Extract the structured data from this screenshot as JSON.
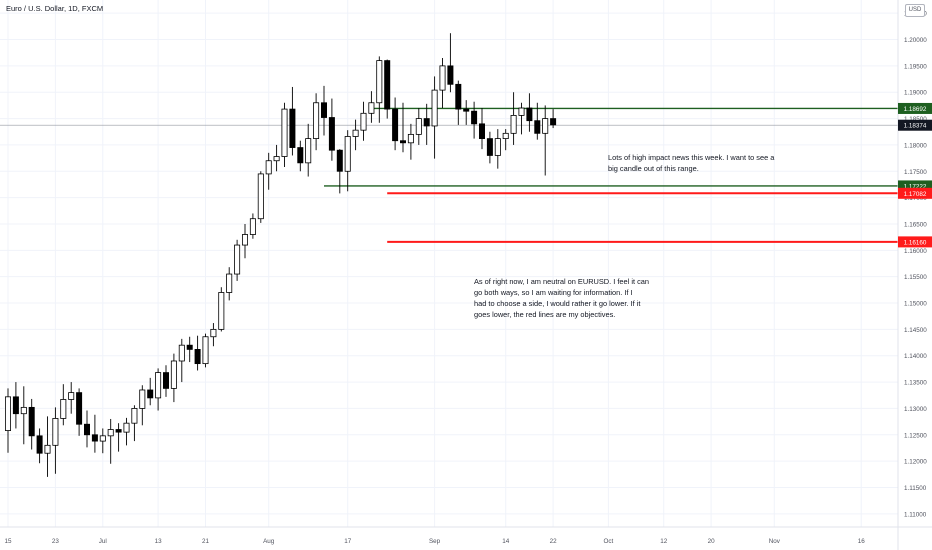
{
  "header": {
    "title": "Euro / U.S. Dollar, 1D, FXCM",
    "currency": "USD"
  },
  "colors": {
    "up_fill": "#ffffff",
    "down_fill": "#000000",
    "candle_stroke": "#000000",
    "support_line": "#1e5f20",
    "target_line": "#ff1a1a",
    "grid": "#f0f3fa",
    "axis_text": "#50535e",
    "last_price_bg": "#131722"
  },
  "chart_data": {
    "type": "candlestick",
    "symbol": "EURUSD",
    "timeframe": "1D",
    "source": "FXCM",
    "ylim": [
      1.1075,
      1.2075
    ],
    "y_ticks": [
      "1.11000",
      "1.11500",
      "1.12000",
      "1.12500",
      "1.13000",
      "1.13500",
      "1.14000",
      "1.14500",
      "1.15000",
      "1.15500",
      "1.16000",
      "1.16500",
      "1.17000",
      "1.17500",
      "1.18000",
      "1.18500",
      "1.19000",
      "1.19500",
      "1.20000",
      "1.20500"
    ],
    "x_ticks": [
      {
        "label": "15",
        "bar": 0
      },
      {
        "label": "23",
        "bar": 6
      },
      {
        "label": "Jul",
        "bar": 12
      },
      {
        "label": "13",
        "bar": 19
      },
      {
        "label": "21",
        "bar": 25
      },
      {
        "label": "Aug",
        "bar": 33
      },
      {
        "label": "17",
        "bar": 43
      },
      {
        "label": "Sep",
        "bar": 54
      },
      {
        "label": "14",
        "bar": 63
      },
      {
        "label": "22",
        "bar": 69
      },
      {
        "label": "Oct",
        "bar": 76
      },
      {
        "label": "12",
        "bar": 83
      },
      {
        "label": "20",
        "bar": 89
      },
      {
        "label": "Nov",
        "bar": 97
      },
      {
        "label": "16",
        "bar": 108
      }
    ],
    "candles": [
      [
        1.1258,
        1.1338,
        1.1216,
        1.1322
      ],
      [
        1.1322,
        1.135,
        1.1262,
        1.129
      ],
      [
        1.129,
        1.1342,
        1.1232,
        1.1302
      ],
      [
        1.1302,
        1.1318,
        1.1222,
        1.1248
      ],
      [
        1.1248,
        1.1262,
        1.1196,
        1.1215
      ],
      [
        1.1215,
        1.1285,
        1.117,
        1.123
      ],
      [
        1.123,
        1.1302,
        1.1176,
        1.1281
      ],
      [
        1.1281,
        1.1346,
        1.1268,
        1.1317
      ],
      [
        1.1317,
        1.135,
        1.129,
        1.133
      ],
      [
        1.133,
        1.1338,
        1.1248,
        1.127
      ],
      [
        1.127,
        1.1296,
        1.1226,
        1.125
      ],
      [
        1.125,
        1.1288,
        1.1216,
        1.1238
      ],
      [
        1.1238,
        1.1262,
        1.1215,
        1.1248
      ],
      [
        1.1248,
        1.128,
        1.1195,
        1.126
      ],
      [
        1.126,
        1.1272,
        1.1218,
        1.1255
      ],
      [
        1.1255,
        1.1282,
        1.123,
        1.1272
      ],
      [
        1.1272,
        1.1306,
        1.1238,
        1.13
      ],
      [
        1.13,
        1.1344,
        1.1268,
        1.1335
      ],
      [
        1.1335,
        1.1358,
        1.1306,
        1.132
      ],
      [
        1.132,
        1.1376,
        1.1296,
        1.1368
      ],
      [
        1.1368,
        1.1382,
        1.1322,
        1.1338
      ],
      [
        1.1338,
        1.1404,
        1.1312,
        1.139
      ],
      [
        1.139,
        1.1432,
        1.135,
        1.142
      ],
      [
        1.142,
        1.1436,
        1.1388,
        1.1412
      ],
      [
        1.1412,
        1.1438,
        1.1372,
        1.1385
      ],
      [
        1.1385,
        1.1442,
        1.1378,
        1.1436
      ],
      [
        1.1436,
        1.1462,
        1.1418,
        1.145
      ],
      [
        1.145,
        1.153,
        1.1446,
        1.152
      ],
      [
        1.152,
        1.1568,
        1.1505,
        1.1555
      ],
      [
        1.1555,
        1.162,
        1.1542,
        1.161
      ],
      [
        1.161,
        1.165,
        1.1585,
        1.163
      ],
      [
        1.163,
        1.167,
        1.1622,
        1.166
      ],
      [
        1.166,
        1.175,
        1.1652,
        1.1745
      ],
      [
        1.1745,
        1.1785,
        1.1715,
        1.177
      ],
      [
        1.177,
        1.18,
        1.175,
        1.1778
      ],
      [
        1.1778,
        1.188,
        1.1758,
        1.1868
      ],
      [
        1.1868,
        1.191,
        1.178,
        1.1795
      ],
      [
        1.1795,
        1.1808,
        1.175,
        1.1766
      ],
      [
        1.1766,
        1.184,
        1.174,
        1.1812
      ],
      [
        1.1812,
        1.1898,
        1.179,
        1.188
      ],
      [
        1.188,
        1.1912,
        1.1818,
        1.1852
      ],
      [
        1.1852,
        1.1888,
        1.177,
        1.179
      ],
      [
        1.179,
        1.1792,
        1.1708,
        1.175
      ],
      [
        1.175,
        1.1828,
        1.1712,
        1.1816
      ],
      [
        1.1816,
        1.1848,
        1.179,
        1.1828
      ],
      [
        1.1828,
        1.1882,
        1.1808,
        1.186
      ],
      [
        1.186,
        1.1902,
        1.1842,
        1.188
      ],
      [
        1.188,
        1.1968,
        1.1842,
        1.196
      ],
      [
        1.196,
        1.1962,
        1.185,
        1.1868
      ],
      [
        1.1868,
        1.189,
        1.179,
        1.1808
      ],
      [
        1.1808,
        1.188,
        1.1786,
        1.1804
      ],
      [
        1.1804,
        1.184,
        1.1772,
        1.182
      ],
      [
        1.182,
        1.187,
        1.18,
        1.185
      ],
      [
        1.185,
        1.1878,
        1.18,
        1.1836
      ],
      [
        1.1836,
        1.193,
        1.1774,
        1.1904
      ],
      [
        1.1904,
        1.1965,
        1.187,
        1.195
      ],
      [
        1.195,
        1.2012,
        1.19,
        1.1915
      ],
      [
        1.1915,
        1.1922,
        1.1838,
        1.1868
      ],
      [
        1.1868,
        1.1885,
        1.1838,
        1.1864
      ],
      [
        1.1864,
        1.1882,
        1.1812,
        1.184
      ],
      [
        1.184,
        1.187,
        1.1792,
        1.1812
      ],
      [
        1.1812,
        1.1825,
        1.1765,
        1.178
      ],
      [
        1.178,
        1.183,
        1.1755,
        1.1812
      ],
      [
        1.1812,
        1.183,
        1.179,
        1.1822
      ],
      [
        1.1822,
        1.19,
        1.18,
        1.1856
      ],
      [
        1.1856,
        1.188,
        1.182,
        1.187
      ],
      [
        1.187,
        1.1898,
        1.1825,
        1.1846
      ],
      [
        1.1846,
        1.188,
        1.181,
        1.1822
      ],
      [
        1.1822,
        1.1875,
        1.1742,
        1.185
      ],
      [
        1.185,
        1.1868,
        1.1832,
        1.1838
      ]
    ],
    "levels": [
      {
        "value": 1.18692,
        "label": "1.18692",
        "color": "#1e5f20",
        "from_bar": 46
      },
      {
        "value": 1.17222,
        "label": "1.17222",
        "color": "#1e5f20",
        "from_bar": 40
      },
      {
        "value": 1.17082,
        "label": "1.17082",
        "color": "#ff1a1a",
        "from_bar": 48
      },
      {
        "value": 1.1616,
        "label": "1.16160",
        "color": "#ff1a1a",
        "from_bar": 48
      }
    ],
    "last_price": {
      "value": 1.18374,
      "label": "1.18374"
    },
    "annotations": [
      {
        "id": "note1",
        "text": "Lots of high impact news this week. I want to see a\nbig candle out of this range."
      },
      {
        "id": "note2",
        "text": "As of right now, I am neutral on EURUSD. I feel it can\ngo both ways, so I am waiting for information. If I\nhad to choose a side, I would rather it go lower. If it\ngoes lower, the red lines are my objectives."
      }
    ]
  }
}
